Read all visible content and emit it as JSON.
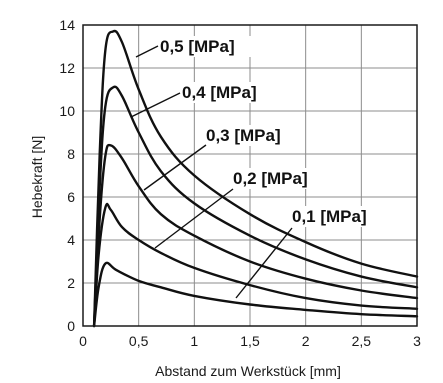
{
  "chart_data": {
    "type": "line",
    "xlabel": "Abstand zum Werkstück [mm]",
    "ylabel": "Hebekraft [N]",
    "xlim": [
      0,
      3
    ],
    "ylim": [
      0,
      14
    ],
    "x_ticks": [
      0,
      0.5,
      1,
      1.5,
      2,
      2.5,
      3
    ],
    "x_tick_labels": [
      "0",
      "0,5",
      "1",
      "1,5",
      "2",
      "2,5",
      "3"
    ],
    "y_ticks": [
      0,
      2,
      4,
      6,
      8,
      10,
      12,
      14
    ],
    "y_tick_labels": [
      "0",
      "2",
      "4",
      "6",
      "8",
      "10",
      "12",
      "14"
    ],
    "grid": true,
    "series": [
      {
        "name": "0,5 [MPa]",
        "x": [
          0.1,
          0.15,
          0.2,
          0.27,
          0.35,
          0.5,
          0.7,
          1.0,
          1.5,
          2.0,
          2.5,
          3.0
        ],
        "y": [
          0,
          8.0,
          12.8,
          13.7,
          13.2,
          11.0,
          8.8,
          7.0,
          5.2,
          3.9,
          2.9,
          2.3
        ]
      },
      {
        "name": "0,4 [MPa]",
        "x": [
          0.1,
          0.15,
          0.2,
          0.27,
          0.35,
          0.5,
          0.7,
          1.0,
          1.5,
          2.0,
          2.5,
          3.0
        ],
        "y": [
          0,
          6.5,
          10.2,
          11.1,
          10.7,
          9.0,
          7.2,
          5.7,
          4.2,
          3.1,
          2.3,
          1.8
        ]
      },
      {
        "name": "0,3 [MPa]",
        "x": [
          0.1,
          0.15,
          0.2,
          0.25,
          0.35,
          0.5,
          0.7,
          1.0,
          1.5,
          2.0,
          2.5,
          3.0
        ],
        "y": [
          0,
          5.0,
          7.9,
          8.4,
          7.8,
          6.5,
          5.2,
          4.2,
          3.0,
          2.2,
          1.65,
          1.3
        ]
      },
      {
        "name": "0,2 [MPa]",
        "x": [
          0.1,
          0.14,
          0.2,
          0.25,
          0.35,
          0.5,
          0.7,
          1.0,
          1.5,
          2.0,
          2.5,
          3.0
        ],
        "y": [
          0,
          3.3,
          5.5,
          5.4,
          4.6,
          4.0,
          3.4,
          2.7,
          1.9,
          1.3,
          0.95,
          0.8
        ]
      },
      {
        "name": "0,1 [MPa]",
        "x": [
          0.1,
          0.14,
          0.2,
          0.3,
          0.5,
          0.7,
          1.0,
          1.5,
          2.0,
          2.5,
          3.0
        ],
        "y": [
          0,
          1.8,
          2.9,
          2.6,
          2.1,
          1.8,
          1.4,
          1.0,
          0.75,
          0.55,
          0.45
        ]
      }
    ],
    "series_color": "#111111",
    "grid_color": "#8c8c8c",
    "frame_color": "#1a1a1a",
    "background": "#ffffff"
  }
}
